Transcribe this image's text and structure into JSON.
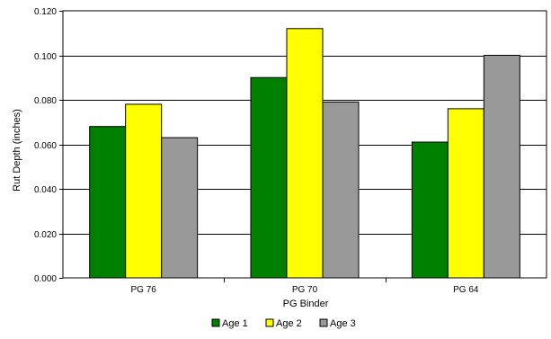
{
  "chart_data": {
    "type": "bar",
    "title": "",
    "xlabel": "PG Binder",
    "ylabel": "Rut Depth (inches)",
    "categories": [
      "PG 76",
      "PG 70",
      "PG 64"
    ],
    "series": [
      {
        "name": "Age 1",
        "values": [
          0.068,
          0.09,
          0.061
        ],
        "color": "#008000"
      },
      {
        "name": "Age 2",
        "values": [
          0.078,
          0.112,
          0.076
        ],
        "color": "#ffff00"
      },
      {
        "name": "Age 3",
        "values": [
          0.063,
          0.079,
          0.1
        ],
        "color": "#999999"
      }
    ],
    "ylim": [
      0,
      0.12
    ],
    "yticks": [
      "0.000",
      "0.020",
      "0.040",
      "0.060",
      "0.080",
      "0.100",
      "0.120"
    ],
    "grid": true,
    "legend_position": "bottom"
  }
}
